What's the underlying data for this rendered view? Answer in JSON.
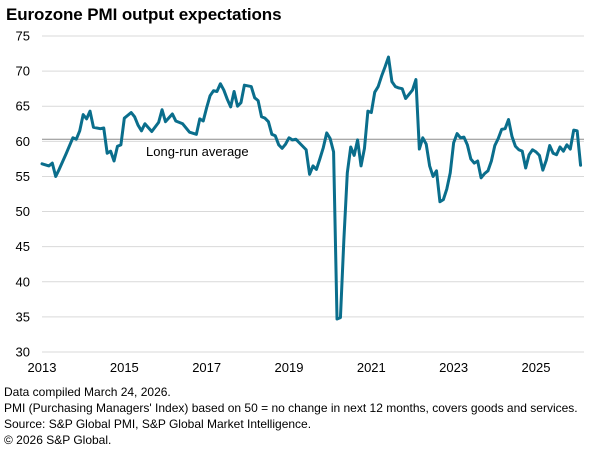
{
  "chart_data": {
    "type": "line",
    "title": "Eurozone PMI output expectations",
    "xlabel": "",
    "ylabel": "",
    "ylim": [
      30,
      75
    ],
    "xlim": [
      "2013-01",
      "2026-03"
    ],
    "yticks": [
      "75",
      "70",
      "65",
      "60",
      "55",
      "50",
      "45",
      "40",
      "35",
      "30"
    ],
    "xticks": [
      "2013",
      "2015",
      "2017",
      "2019",
      "2021",
      "2023",
      "2025"
    ],
    "grid": "horizontal",
    "reference_line": {
      "label": "Long-run average",
      "value": 60.3
    },
    "series_color": "#0a6e8c",
    "series": [
      {
        "name": "",
        "points": [
          [
            "2013-01",
            56.8
          ],
          [
            "2013-03",
            56.5
          ],
          [
            "2013-04",
            56.9
          ],
          [
            "2013-05",
            55.0
          ],
          [
            "2013-06",
            56.0
          ],
          [
            "2013-08",
            58.2
          ],
          [
            "2013-10",
            60.5
          ],
          [
            "2013-11",
            60.3
          ],
          [
            "2013-12",
            61.5
          ],
          [
            "2014-01",
            63.8
          ],
          [
            "2014-02",
            63.2
          ],
          [
            "2014-03",
            64.3
          ],
          [
            "2014-04",
            62.0
          ],
          [
            "2014-06",
            61.8
          ],
          [
            "2014-07",
            61.9
          ],
          [
            "2014-08",
            58.3
          ],
          [
            "2014-09",
            58.6
          ],
          [
            "2014-10",
            57.2
          ],
          [
            "2014-11",
            59.3
          ],
          [
            "2014-12",
            59.5
          ],
          [
            "2015-01",
            63.3
          ],
          [
            "2015-03",
            64.1
          ],
          [
            "2015-04",
            63.5
          ],
          [
            "2015-05",
            62.3
          ],
          [
            "2015-06",
            61.5
          ],
          [
            "2015-07",
            62.5
          ],
          [
            "2015-09",
            61.4
          ],
          [
            "2015-11",
            62.7
          ],
          [
            "2015-12",
            64.5
          ],
          [
            "2016-01",
            62.8
          ],
          [
            "2016-03",
            63.9
          ],
          [
            "2016-04",
            62.9
          ],
          [
            "2016-06",
            62.5
          ],
          [
            "2016-08",
            61.3
          ],
          [
            "2016-10",
            61.0
          ],
          [
            "2016-11",
            63.2
          ],
          [
            "2016-12",
            62.9
          ],
          [
            "2017-01",
            64.8
          ],
          [
            "2017-02",
            66.5
          ],
          [
            "2017-03",
            67.2
          ],
          [
            "2017-04",
            67.1
          ],
          [
            "2017-05",
            68.2
          ],
          [
            "2017-06",
            67.3
          ],
          [
            "2017-07",
            66.0
          ],
          [
            "2017-08",
            64.9
          ],
          [
            "2017-09",
            67.1
          ],
          [
            "2017-10",
            65.0
          ],
          [
            "2017-11",
            65.5
          ],
          [
            "2017-12",
            68.0
          ],
          [
            "2018-02",
            67.8
          ],
          [
            "2018-03",
            66.2
          ],
          [
            "2018-04",
            65.8
          ],
          [
            "2018-05",
            63.5
          ],
          [
            "2018-06",
            63.3
          ],
          [
            "2018-07",
            62.8
          ],
          [
            "2018-08",
            61.0
          ],
          [
            "2018-09",
            60.8
          ],
          [
            "2018-10",
            59.5
          ],
          [
            "2018-11",
            59.0
          ],
          [
            "2018-12",
            59.6
          ],
          [
            "2019-01",
            60.5
          ],
          [
            "2019-02",
            60.2
          ],
          [
            "2019-03",
            60.3
          ],
          [
            "2019-04",
            59.8
          ],
          [
            "2019-05",
            59.3
          ],
          [
            "2019-06",
            58.8
          ],
          [
            "2019-07",
            55.3
          ],
          [
            "2019-08",
            56.5
          ],
          [
            "2019-09",
            56.0
          ],
          [
            "2019-10",
            57.5
          ],
          [
            "2019-11",
            59.1
          ],
          [
            "2019-12",
            61.2
          ],
          [
            "2020-01",
            60.4
          ],
          [
            "2020-02",
            58.5
          ],
          [
            "2020-03",
            34.7
          ],
          [
            "2020-04",
            34.9
          ],
          [
            "2020-05",
            46.0
          ],
          [
            "2020-06",
            55.5
          ],
          [
            "2020-07",
            59.2
          ],
          [
            "2020-08",
            58.0
          ],
          [
            "2020-09",
            60.2
          ],
          [
            "2020-10",
            56.5
          ],
          [
            "2020-11",
            59.0
          ],
          [
            "2020-12",
            64.3
          ],
          [
            "2021-01",
            64.1
          ],
          [
            "2021-02",
            67.0
          ],
          [
            "2021-03",
            67.8
          ],
          [
            "2021-04",
            69.3
          ],
          [
            "2021-05",
            70.6
          ],
          [
            "2021-06",
            72.0
          ],
          [
            "2021-07",
            68.5
          ],
          [
            "2021-08",
            67.8
          ],
          [
            "2021-09",
            67.6
          ],
          [
            "2021-10",
            67.5
          ],
          [
            "2021-11",
            66.1
          ],
          [
            "2021-12",
            66.7
          ],
          [
            "2022-01",
            67.3
          ],
          [
            "2022-02",
            68.8
          ],
          [
            "2022-03",
            58.9
          ],
          [
            "2022-04",
            60.5
          ],
          [
            "2022-05",
            59.6
          ],
          [
            "2022-06",
            56.5
          ],
          [
            "2022-07",
            55.0
          ],
          [
            "2022-08",
            55.8
          ],
          [
            "2022-09",
            51.4
          ],
          [
            "2022-10",
            51.7
          ],
          [
            "2022-11",
            53.2
          ],
          [
            "2022-12",
            55.5
          ],
          [
            "2023-01",
            59.8
          ],
          [
            "2023-02",
            61.1
          ],
          [
            "2023-03",
            60.5
          ],
          [
            "2023-04",
            60.6
          ],
          [
            "2023-05",
            59.5
          ],
          [
            "2023-06",
            57.5
          ],
          [
            "2023-07",
            56.9
          ],
          [
            "2023-08",
            57.2
          ],
          [
            "2023-09",
            54.8
          ],
          [
            "2023-10",
            55.4
          ],
          [
            "2023-11",
            55.8
          ],
          [
            "2023-12",
            57.2
          ],
          [
            "2024-01",
            59.4
          ],
          [
            "2024-02",
            60.4
          ],
          [
            "2024-03",
            61.7
          ],
          [
            "2024-04",
            61.8
          ],
          [
            "2024-05",
            63.1
          ],
          [
            "2024-06",
            60.7
          ],
          [
            "2024-07",
            59.3
          ],
          [
            "2024-08",
            58.8
          ],
          [
            "2024-09",
            58.6
          ],
          [
            "2024-10",
            56.2
          ],
          [
            "2024-11",
            58.1
          ],
          [
            "2024-12",
            58.8
          ],
          [
            "2025-01",
            58.5
          ],
          [
            "2025-02",
            58.0
          ],
          [
            "2025-03",
            55.9
          ],
          [
            "2025-04",
            57.3
          ],
          [
            "2025-05",
            59.4
          ],
          [
            "2025-06",
            58.3
          ],
          [
            "2025-07",
            58.1
          ],
          [
            "2025-08",
            59.2
          ],
          [
            "2025-09",
            58.6
          ],
          [
            "2025-10",
            59.5
          ],
          [
            "2025-11",
            58.9
          ],
          [
            "2025-12",
            61.6
          ],
          [
            "2026-01",
            61.5
          ],
          [
            "2026-02",
            56.6
          ]
        ]
      }
    ]
  },
  "notes": [
    "Data compiled March 24, 2026.",
    "PMI (Purchasing Managers' Index) based on 50 = no change in next 12 months, covers goods and services.",
    "Source: S&P Global PMI, S&P Global Market Intelligence.",
    "© 2026 S&P Global."
  ]
}
